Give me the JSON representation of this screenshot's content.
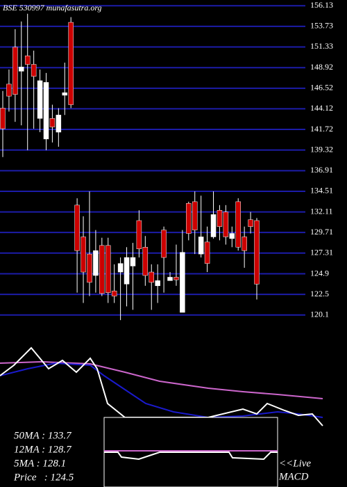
{
  "chart_data": [
    {
      "type": "candlestick",
      "title": "BSE 530997 munafasutra.org",
      "open": [
        144.2,
        147.0,
        151.3,
        148.5,
        150.3,
        149.3,
        143.0,
        140.6,
        143.0,
        141.4,
        145.7,
        154.2,
        132.9,
        129.2,
        127.2,
        124.7,
        128.2,
        128.2,
        122.9,
        125.1,
        123.7,
        125.8,
        131.1,
        128.0,
        125.1,
        123.5,
        130.0,
        124.1,
        124.5,
        120.4,
        133.1,
        133.3,
        127.2,
        128.6,
        129.2,
        132.3,
        132.1,
        129.0,
        133.3,
        129.2,
        131.2,
        131.1
      ],
      "high": [
        146.2,
        148.7,
        153.4,
        154.3,
        155.2,
        150.9,
        148.7,
        148.3,
        144.6,
        144.2,
        149.5,
        154.8,
        133.7,
        131.6,
        134.5,
        130.0,
        129.1,
        129.1,
        126.0,
        126.8,
        128.0,
        128.5,
        132.3,
        129.3,
        126.0,
        126.0,
        130.4,
        125.1,
        128.3,
        130.0,
        133.3,
        134.5,
        134.0,
        130.4,
        134.5,
        132.9,
        132.9,
        130.4,
        133.7,
        130.4,
        132.1,
        131.4
      ],
      "low": [
        138.5,
        143.8,
        142.6,
        142.2,
        139.3,
        141.8,
        141.4,
        139.3,
        140.2,
        139.7,
        143.4,
        144.2,
        122.7,
        121.5,
        122.3,
        122.7,
        122.3,
        121.5,
        121.5,
        119.5,
        121.1,
        120.7,
        126.8,
        123.5,
        120.7,
        121.5,
        122.7,
        124.1,
        123.5,
        120.4,
        128.8,
        127.2,
        126.8,
        125.1,
        129.0,
        128.8,
        128.3,
        128.0,
        127.6,
        125.6,
        129.6,
        121.9
      ],
      "close": [
        141.8,
        145.6,
        145.8,
        149.0,
        149.3,
        147.9,
        147.4,
        147.2,
        142.0,
        143.4,
        146.0,
        144.6,
        127.6,
        125.1,
        123.9,
        127.6,
        122.6,
        122.7,
        122.3,
        126.1,
        126.8,
        126.8,
        127.8,
        124.7,
        123.9,
        124.1,
        126.8,
        124.5,
        124.2,
        127.4,
        129.6,
        130.0,
        129.2,
        126.1,
        131.8,
        130.4,
        129.2,
        129.6,
        128.0,
        127.6,
        130.4,
        123.7
      ],
      "up_color": "#ffffff",
      "down_color": "#cc0000",
      "grid_color": "#1c1ca8",
      "ylim": [
        118.7,
        156.8
      ],
      "yticks": [
        156.13,
        153.73,
        151.33,
        148.92,
        146.52,
        144.12,
        141.72,
        139.32,
        136.91,
        134.51,
        132.11,
        129.71,
        127.31,
        124.9,
        122.5,
        120.1
      ],
      "grid": true
    },
    {
      "type": "line",
      "xlim": [
        0,
        500
      ],
      "ylim": [
        -15,
        100
      ],
      "series": [
        {
          "color": "#cc66cc",
          "x": [
            0,
            60,
            130,
            180,
            230,
            300,
            350,
            400,
            465
          ],
          "values": [
            65,
            66.7,
            64.2,
            54.2,
            43.3,
            35,
            30.8,
            27.5,
            22.5
          ]
        },
        {
          "color": "#1a1acc",
          "x": [
            0,
            40,
            80,
            130,
            150,
            180,
            210,
            250,
            300,
            350,
            400,
            430,
            465
          ],
          "values": [
            50,
            58.3,
            65,
            62.5,
            50,
            33.3,
            16.7,
            6.7,
            0,
            1.7,
            6.7,
            4.2,
            0
          ]
        },
        {
          "color": "#ffffff",
          "x": [
            0,
            20,
            45,
            70,
            90,
            110,
            130,
            140,
            155,
            180,
            250,
            300,
            350,
            370,
            385,
            410,
            430,
            450,
            465
          ],
          "values": [
            50,
            62.5,
            83.3,
            58.3,
            68.3,
            54.2,
            70.8,
            58.3,
            16.7,
            0,
            0,
            0,
            10,
            4.2,
            16.7,
            8.3,
            2.5,
            4.2,
            -10
          ]
        }
      ],
      "labels": [
        "50MA : 133.7",
        "12MA : 128.7",
        "5MA : 128.1",
        "Price   : 124.5"
      ]
    },
    {
      "type": "macd",
      "title": "<<Live",
      "subtitle": "MACD",
      "xlim": [
        0,
        500
      ],
      "ylim": [
        -50,
        50
      ],
      "series": [
        {
          "color": "#cc66cc",
          "x": [
            150,
            400
          ],
          "values": [
            2,
            2
          ]
        },
        {
          "color": "#ffffff",
          "x": [
            150,
            170,
            175,
            200,
            215,
            230,
            330,
            335,
            380,
            390,
            400
          ],
          "values": [
            0,
            0,
            -7,
            -10,
            -5,
            0,
            0,
            -8,
            -10,
            0,
            0
          ]
        }
      ]
    }
  ]
}
